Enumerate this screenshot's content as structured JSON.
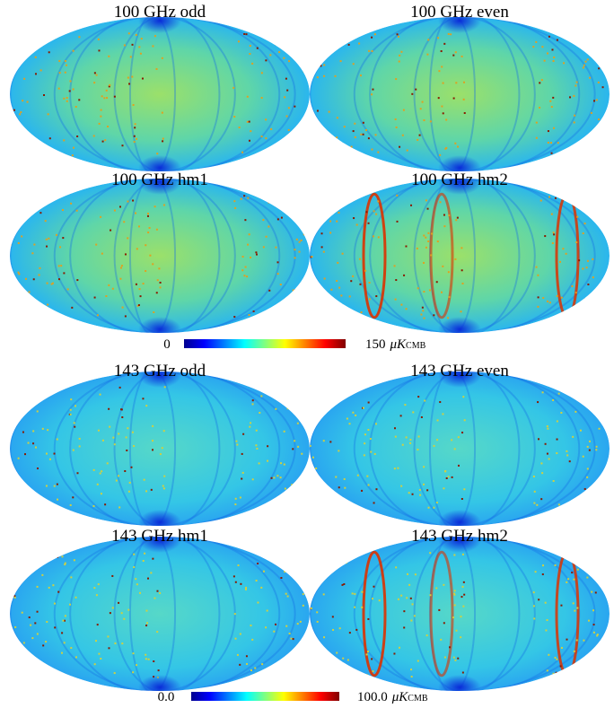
{
  "panels": [
    {
      "title": "100 GHz odd"
    },
    {
      "title": "100 GHz even"
    },
    {
      "title": "100 GHz hm1"
    },
    {
      "title": "100 GHz hm2"
    },
    {
      "title": "143 GHz odd"
    },
    {
      "title": "143 GHz even"
    },
    {
      "title": "143 GHz hm1"
    },
    {
      "title": "143 GHz hm2"
    }
  ],
  "colorbars": [
    {
      "min": "0",
      "max": "150",
      "unit": "μK",
      "unit_sub": "CMB"
    },
    {
      "min": "0.0",
      "max": "100.0",
      "unit": "μK",
      "unit_sub": "CMB"
    }
  ]
}
